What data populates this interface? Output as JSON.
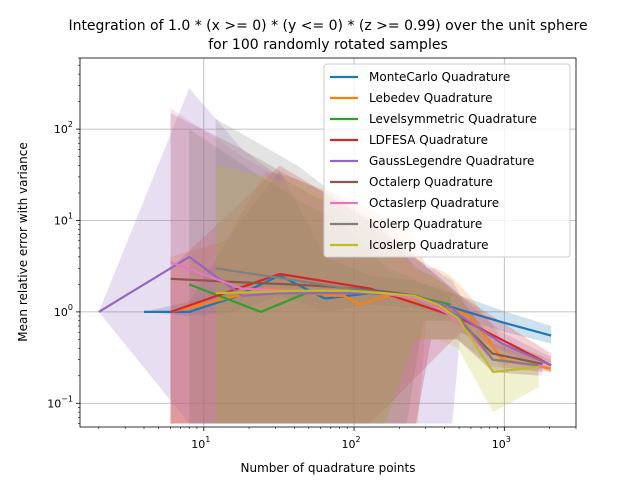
{
  "chart_data": {
    "type": "line",
    "title_line1": "Integration of 1.0 * (x >= 0) * (y <= 0) * (z >= 0.99) over the unit sphere",
    "title_line2": "for 100 randomly rotated samples",
    "xlabel": "Number of quadrature points",
    "ylabel": "Mean relative error with variance",
    "xscale": "log",
    "yscale": "log",
    "xlim": [
      1.5,
      3000
    ],
    "ylim": [
      0.055,
      600
    ],
    "x_ticks": [
      {
        "value": 10,
        "base": "10",
        "exp": "1"
      },
      {
        "value": 100,
        "base": "10",
        "exp": "2"
      },
      {
        "value": 1000,
        "base": "10",
        "exp": "3"
      }
    ],
    "y_ticks": [
      {
        "value": 0.1,
        "base": "10",
        "exp": "−1"
      },
      {
        "value": 1,
        "base": "10",
        "exp": "0"
      },
      {
        "value": 10,
        "base": "10",
        "exp": "1"
      },
      {
        "value": 100,
        "base": "10",
        "exp": "2"
      }
    ],
    "grid": true,
    "legend_position": "top-right",
    "series": [
      {
        "name": "MonteCarlo Quadrature",
        "color": "#1f77b4",
        "x": [
          4,
          8,
          16,
          32,
          64,
          128,
          256,
          512,
          1024,
          2048
        ],
        "y": [
          1.0,
          1.0,
          1.45,
          2.5,
          1.4,
          1.6,
          1.5,
          1.05,
          0.75,
          0.55
        ],
        "lower": [
          1.0,
          0.9,
          1.0,
          1.5,
          1.0,
          1.2,
          1.1,
          0.85,
          0.6,
          0.45
        ],
        "upper": [
          1.0,
          1.3,
          8,
          35,
          4,
          2.5,
          2.2,
          1.5,
          1.0,
          0.7
        ]
      },
      {
        "name": "Lebedev Quadrature",
        "color": "#ff7f0e",
        "x": [
          6,
          14,
          26,
          38,
          50,
          74,
          86,
          110,
          146,
          170,
          194,
          230,
          266,
          302,
          350,
          434,
          590,
          974,
          2030
        ],
        "y": [
          1.0,
          1.4,
          1.8,
          1.7,
          1.6,
          1.5,
          1.5,
          1.2,
          1.4,
          1.5,
          1.5,
          1.3,
          1.4,
          1.3,
          1.2,
          1.1,
          0.9,
          0.3,
          0.24
        ],
        "lower": [
          0.06,
          0.06,
          0.06,
          0.06,
          0.06,
          0.06,
          0.06,
          0.06,
          0.06,
          0.06,
          0.06,
          0.06,
          0.06,
          0.8,
          0.8,
          0.8,
          0.6,
          0.25,
          0.22
        ],
        "upper": [
          4,
          6,
          35,
          30,
          25,
          20,
          18,
          15,
          12,
          10,
          10,
          8,
          6,
          3,
          3,
          2.5,
          1.5,
          0.5,
          0.3
        ]
      },
      {
        "name": "Levelsymmetric Quadrature",
        "color": "#2ca02c",
        "x": [
          8,
          24,
          48,
          80,
          120,
          168,
          224,
          288,
          360,
          440
        ],
        "y": [
          2.0,
          1.0,
          1.6,
          1.7,
          1.7,
          1.6,
          1.5,
          1.4,
          1.3,
          1.2
        ],
        "lower": [
          0.06,
          0.06,
          0.06,
          0.06,
          0.06,
          0.06,
          0.06,
          0.8,
          0.8,
          0.8
        ],
        "upper": [
          100,
          30,
          15,
          10,
          5,
          3,
          2.5,
          2,
          1.8,
          1.6
        ]
      },
      {
        "name": "LDFESA Quadrature",
        "color": "#d62728",
        "x": [
          6,
          32,
          128,
          512,
          2048
        ],
        "y": [
          1.0,
          2.6,
          1.8,
          0.85,
          0.26
        ],
        "lower": [
          0.06,
          0.06,
          0.06,
          0.6,
          0.22
        ],
        "upper": [
          3,
          40,
          10,
          1.5,
          0.35
        ]
      },
      {
        "name": "GaussLegendre Quadrature",
        "color": "#9467bd",
        "x": [
          2,
          8,
          18,
          32,
          50,
          72,
          98,
          128,
          162,
          200,
          242,
          288,
          338,
          392,
          450,
          512,
          968,
          2048
        ],
        "y": [
          1.0,
          4.0,
          1.5,
          1.6,
          1.6,
          1.6,
          1.6,
          1.6,
          1.6,
          1.55,
          1.5,
          1.4,
          1.3,
          1.2,
          1.1,
          0.9,
          0.45,
          0.26
        ],
        "lower": [
          1.0,
          0.06,
          0.06,
          0.06,
          0.06,
          0.06,
          0.06,
          0.06,
          0.06,
          0.06,
          0.06,
          0.06,
          0.06,
          0.06,
          0.06,
          0.6,
          0.3,
          0.22
        ],
        "upper": [
          1.0,
          280,
          60,
          30,
          20,
          15,
          10,
          8,
          6,
          5,
          4,
          3.5,
          3,
          2.5,
          2.2,
          1.5,
          0.6,
          0.32
        ]
      },
      {
        "name": "Octalerp Quadrature",
        "color": "#8c564b",
        "x": [
          6,
          18,
          38,
          66,
          102,
          146,
          198,
          258,
          326,
          402,
          486,
          834,
          1794
        ],
        "y": [
          2.3,
          2.1,
          2.0,
          1.9,
          1.8,
          1.7,
          1.6,
          1.5,
          1.3,
          1.1,
          0.85,
          0.35,
          0.27
        ],
        "lower": [
          0.06,
          0.06,
          0.06,
          0.06,
          0.06,
          0.06,
          0.06,
          0.06,
          0.5,
          0.5,
          0.5,
          0.25,
          0.22
        ],
        "upper": [
          150,
          60,
          30,
          20,
          12,
          8,
          5,
          3,
          2.5,
          2,
          1.5,
          0.5,
          0.32
        ]
      },
      {
        "name": "Octaslerp Quadrature",
        "color": "#e377c2",
        "x": [
          6,
          18,
          38,
          66,
          102,
          146,
          198,
          258,
          326,
          402,
          486,
          834,
          1794
        ],
        "y": [
          3.5,
          1.8,
          1.7,
          1.7,
          1.7,
          1.6,
          1.5,
          1.4,
          1.2,
          1.0,
          0.8,
          0.3,
          0.25
        ],
        "lower": [
          0.06,
          0.06,
          0.06,
          0.06,
          0.06,
          0.06,
          0.06,
          0.06,
          0.5,
          0.5,
          0.5,
          0.22,
          0.2
        ],
        "upper": [
          170,
          50,
          25,
          15,
          10,
          7,
          5,
          3,
          2.2,
          1.8,
          1.4,
          0.45,
          0.3
        ]
      },
      {
        "name": "Icolerp Quadrature",
        "color": "#7f7f7f",
        "x": [
          12,
          42,
          92,
          162,
          252,
          362,
          492,
          842,
          1692
        ],
        "y": [
          3.0,
          2.2,
          1.8,
          1.6,
          1.5,
          1.2,
          0.9,
          0.3,
          0.26
        ],
        "lower": [
          0.06,
          0.06,
          0.06,
          0.06,
          0.5,
          0.5,
          0.5,
          0.22,
          0.2
        ],
        "upper": [
          130,
          40,
          15,
          8,
          4,
          2.5,
          1.6,
          0.45,
          0.32
        ]
      },
      {
        "name": "Icoslerp Quadrature",
        "color": "#bcbd22",
        "x": [
          12,
          42,
          92,
          162,
          252,
          362,
          492,
          842,
          1692
        ],
        "y": [
          1.6,
          1.7,
          1.7,
          1.6,
          1.5,
          1.2,
          0.85,
          0.22,
          0.25
        ],
        "lower": [
          0.06,
          0.06,
          0.06,
          0.06,
          0.5,
          0.5,
          0.4,
          0.08,
          0.15
        ],
        "upper": [
          40,
          25,
          12,
          6,
          3,
          2.2,
          1.5,
          0.4,
          0.3
        ]
      }
    ]
  }
}
